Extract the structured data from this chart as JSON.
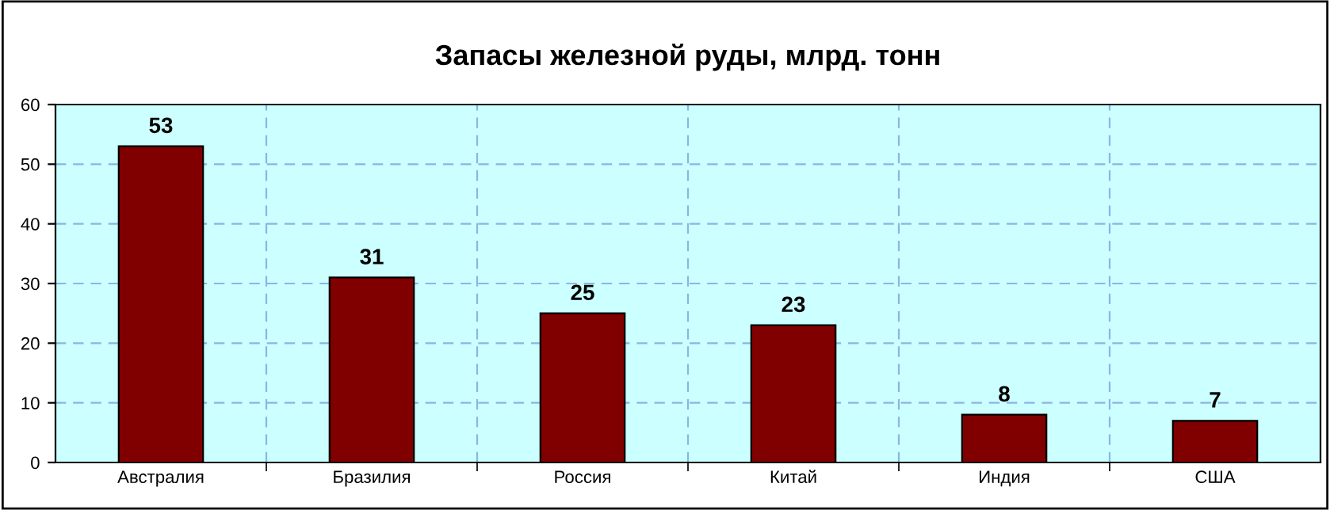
{
  "chart_data": {
    "type": "bar",
    "title": "Запасы железной руды, млрд. тонн",
    "categories": [
      "Австралия",
      "Бразилия",
      "Россия",
      "Китай",
      "Индия",
      "США"
    ],
    "values": [
      53,
      31,
      25,
      23,
      8,
      7
    ],
    "color": "#800000",
    "ylim": [
      0,
      60
    ],
    "yticks": [
      0,
      10,
      20,
      30,
      40,
      50,
      60
    ],
    "grid": true,
    "data_labels": true
  }
}
